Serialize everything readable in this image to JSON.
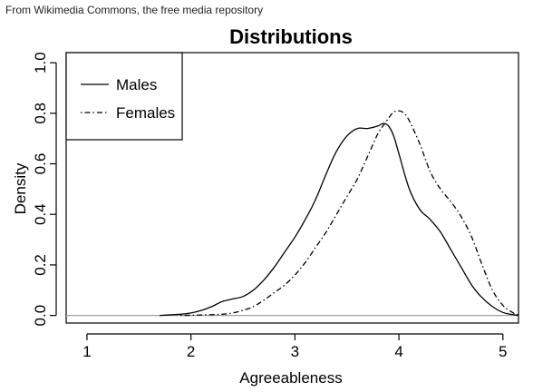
{
  "caption": "From Wikimedia Commons, the free media repository",
  "chart_data": {
    "type": "line",
    "title": "Distributions",
    "xlabel": "Agreeableness",
    "ylabel": "Density",
    "xlim": [
      0.8,
      5.15
    ],
    "ylim": [
      -0.03,
      1.04
    ],
    "xticks": [
      1,
      2,
      3,
      4,
      5
    ],
    "xtick_labels": [
      "1",
      "2",
      "3",
      "4",
      "5"
    ],
    "yticks": [
      0,
      0.2,
      0.4,
      0.6,
      0.8,
      1.0
    ],
    "ytick_labels": [
      "0.0",
      "0.2",
      "0.4",
      "0.6",
      "0.8",
      "1.0"
    ],
    "baseline": 0,
    "baseline_color": "#a0a0a0",
    "legend_position": "top-left",
    "series": [
      {
        "name": "Males",
        "dash": "solid",
        "x": [
          1.7,
          1.9,
          2.0,
          2.1,
          2.2,
          2.3,
          2.4,
          2.5,
          2.6,
          2.7,
          2.8,
          2.9,
          3.0,
          3.1,
          3.2,
          3.3,
          3.4,
          3.5,
          3.6,
          3.7,
          3.8,
          3.85,
          3.9,
          3.95,
          4.0,
          4.1,
          4.2,
          4.3,
          4.4,
          4.5,
          4.6,
          4.7,
          4.8,
          4.9,
          5.0,
          5.1,
          5.15
        ],
        "y": [
          0.0,
          0.005,
          0.01,
          0.02,
          0.035,
          0.055,
          0.065,
          0.075,
          0.1,
          0.14,
          0.19,
          0.25,
          0.31,
          0.38,
          0.46,
          0.56,
          0.65,
          0.71,
          0.74,
          0.74,
          0.75,
          0.76,
          0.75,
          0.71,
          0.64,
          0.5,
          0.42,
          0.38,
          0.33,
          0.26,
          0.19,
          0.12,
          0.07,
          0.035,
          0.012,
          0.003,
          0.0
        ]
      },
      {
        "name": "Females",
        "dash": "dotdash",
        "x": [
          1.9,
          2.1,
          2.3,
          2.4,
          2.5,
          2.6,
          2.7,
          2.8,
          2.9,
          3.0,
          3.1,
          3.2,
          3.3,
          3.4,
          3.5,
          3.6,
          3.7,
          3.8,
          3.9,
          3.95,
          4.0,
          4.05,
          4.1,
          4.2,
          4.3,
          4.4,
          4.5,
          4.6,
          4.7,
          4.8,
          4.9,
          5.0,
          5.1,
          5.15
        ],
        "y": [
          0.0,
          0.002,
          0.005,
          0.01,
          0.02,
          0.035,
          0.06,
          0.09,
          0.12,
          0.16,
          0.21,
          0.27,
          0.33,
          0.4,
          0.47,
          0.54,
          0.63,
          0.72,
          0.78,
          0.805,
          0.81,
          0.8,
          0.77,
          0.68,
          0.57,
          0.5,
          0.45,
          0.39,
          0.31,
          0.2,
          0.1,
          0.04,
          0.01,
          0.003
        ]
      }
    ]
  }
}
